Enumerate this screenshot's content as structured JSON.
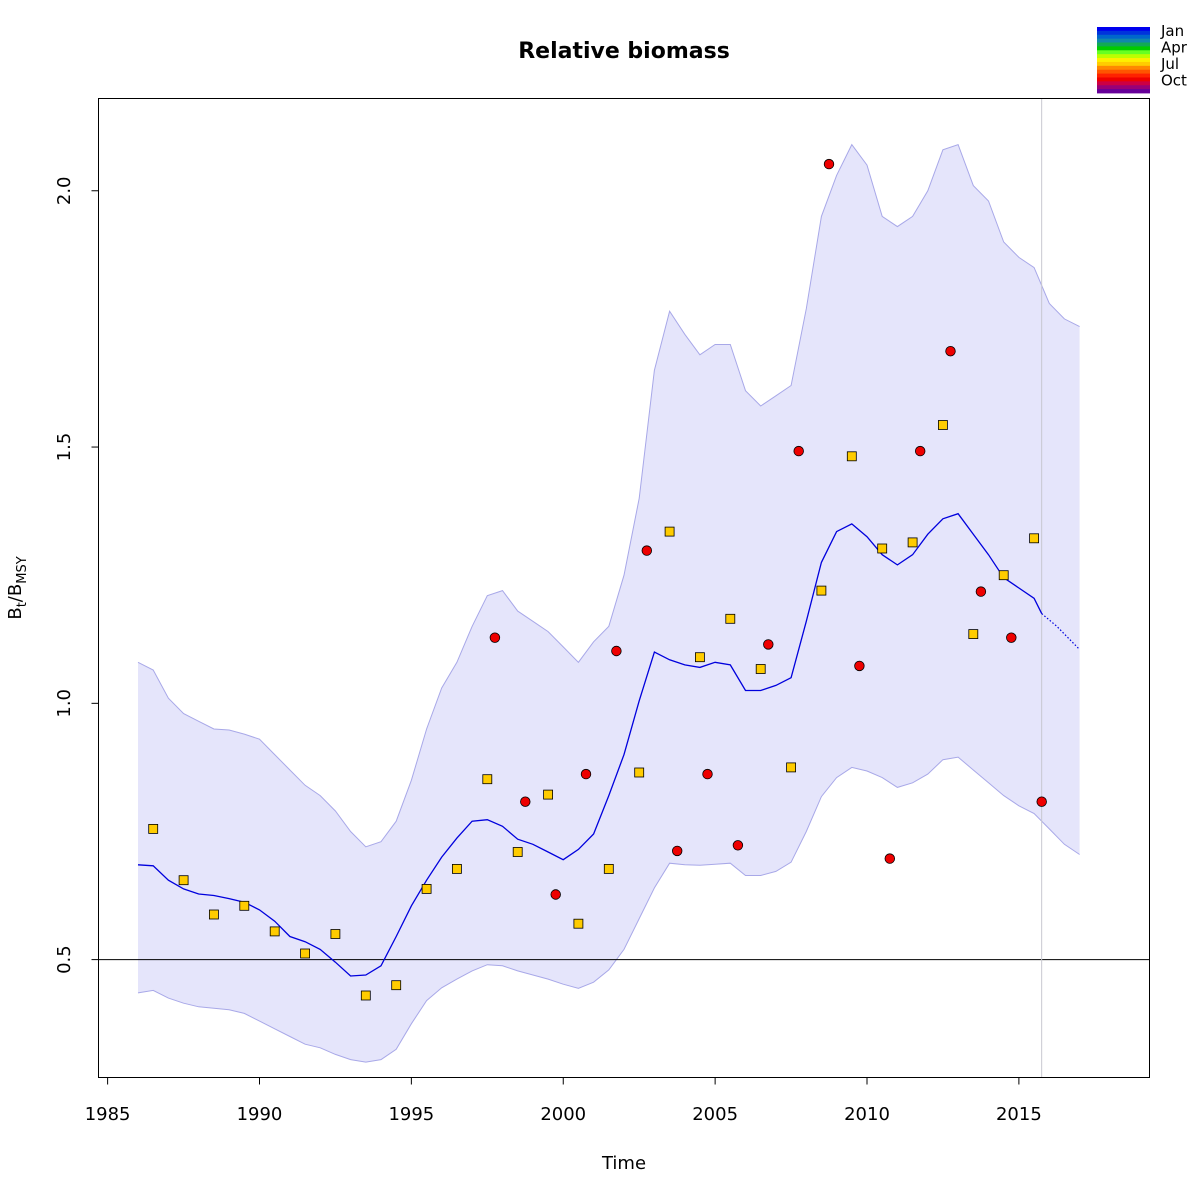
{
  "chart_data": {
    "type": "scatter",
    "title": "Relative biomass",
    "xlabel": "Time",
    "ylabel_main": "B",
    "ylabel_sub1": "t",
    "ylabel_sep": "/B",
    "ylabel_sub2": "MSY",
    "xlim": [
      1984.7,
      2019.3
    ],
    "ylim": [
      0.27,
      2.18
    ],
    "x_ticks": [
      1985,
      1990,
      1995,
      2000,
      2005,
      2010,
      2015
    ],
    "x_tick_labels": [
      "1985",
      "1990",
      "1995",
      "2000",
      "2005",
      "2010",
      "2015"
    ],
    "y_ticks": [
      0.5,
      1.0,
      1.5,
      2.0
    ],
    "y_tick_labels": [
      "0.5",
      "1.0",
      "1.5",
      "2.0"
    ],
    "reference_line_y": 0.5,
    "vertical_line_x": 2015.75,
    "colors": {
      "band_fill": "#e5e5fb",
      "band_edge": "#a8a8e8",
      "median_line": "#0000dd",
      "reference_line": "#000000",
      "vertical_line": "#c8c8d0",
      "series_jul": "#ffcc00",
      "series_oct": "#ee0000"
    },
    "legend": {
      "position": "top-right",
      "labels": [
        "Jan",
        "Apr",
        "Jul",
        "Oct"
      ],
      "gradient": [
        "#0000ee",
        "#0033dd",
        "#0066cc",
        "#1188aa",
        "#11aa55",
        "#00cc00",
        "#66ff22",
        "#bbff00",
        "#ffee00",
        "#ffcc00",
        "#ff8800",
        "#ff5500",
        "#ff2200",
        "#ee0000",
        "#cc0044",
        "#990077",
        "#660099"
      ]
    },
    "median": {
      "x": [
        1986.0,
        1986.5,
        1987.0,
        1987.5,
        1988.0,
        1988.5,
        1989.0,
        1989.5,
        1990.0,
        1990.5,
        1991.0,
        1991.5,
        1992.0,
        1992.5,
        1993.0,
        1993.5,
        1994.0,
        1994.5,
        1995.0,
        1995.5,
        1996.0,
        1996.5,
        1997.0,
        1997.5,
        1998.0,
        1998.5,
        1999.0,
        1999.5,
        2000.0,
        2000.5,
        2001.0,
        2001.5,
        2002.0,
        2002.5,
        2003.0,
        2003.5,
        2004.0,
        2004.5,
        2005.0,
        2005.5,
        2006.0,
        2006.5,
        2007.0,
        2007.5,
        2008.0,
        2008.5,
        2009.0,
        2009.5,
        2010.0,
        2010.5,
        2011.0,
        2011.5,
        2012.0,
        2012.5,
        2013.0,
        2013.5,
        2014.0,
        2014.5,
        2015.0,
        2015.5,
        2015.75
      ],
      "y": [
        0.685,
        0.683,
        0.655,
        0.638,
        0.628,
        0.625,
        0.619,
        0.612,
        0.597,
        0.575,
        0.545,
        0.535,
        0.52,
        0.495,
        0.468,
        0.47,
        0.488,
        0.545,
        0.605,
        0.655,
        0.7,
        0.737,
        0.77,
        0.773,
        0.76,
        0.735,
        0.725,
        0.71,
        0.695,
        0.715,
        0.745,
        0.82,
        0.9,
        1.005,
        1.1,
        1.085,
        1.075,
        1.07,
        1.08,
        1.075,
        1.025,
        1.025,
        1.035,
        1.05,
        1.16,
        1.275,
        1.335,
        1.35,
        1.325,
        1.29,
        1.27,
        1.29,
        1.33,
        1.36,
        1.37,
        1.33,
        1.29,
        1.245,
        1.225,
        1.205,
        1.175
      ],
      "projection_x": [
        2015.75,
        2016.25,
        2016.75,
        2017.0
      ],
      "projection_y": [
        1.175,
        1.15,
        1.12,
        1.105
      ]
    },
    "band": {
      "x": [
        1986.0,
        1986.5,
        1987.0,
        1987.5,
        1988.0,
        1988.5,
        1989.0,
        1989.5,
        1990.0,
        1990.5,
        1991.0,
        1991.5,
        1992.0,
        1992.5,
        1993.0,
        1993.5,
        1994.0,
        1994.5,
        1995.0,
        1995.5,
        1996.0,
        1996.5,
        1997.0,
        1997.5,
        1998.0,
        1998.5,
        1999.0,
        1999.5,
        2000.0,
        2000.5,
        2001.0,
        2001.5,
        2002.0,
        2002.5,
        2003.0,
        2003.5,
        2004.0,
        2004.5,
        2005.0,
        2005.5,
        2006.0,
        2006.5,
        2007.0,
        2007.5,
        2008.0,
        2008.5,
        2009.0,
        2009.5,
        2010.0,
        2010.5,
        2011.0,
        2011.5,
        2012.0,
        2012.5,
        2013.0,
        2013.5,
        2014.0,
        2014.5,
        2015.0,
        2015.5,
        2016.0,
        2016.5,
        2017.0
      ],
      "upper": [
        1.08,
        1.065,
        1.01,
        0.98,
        0.965,
        0.95,
        0.948,
        0.94,
        0.93,
        0.9,
        0.87,
        0.84,
        0.82,
        0.79,
        0.75,
        0.72,
        0.73,
        0.77,
        0.85,
        0.95,
        1.03,
        1.08,
        1.15,
        1.21,
        1.22,
        1.18,
        1.16,
        1.14,
        1.11,
        1.08,
        1.12,
        1.15,
        1.25,
        1.4,
        1.65,
        1.765,
        1.72,
        1.68,
        1.7,
        1.7,
        1.61,
        1.58,
        1.6,
        1.62,
        1.77,
        1.95,
        2.03,
        2.09,
        2.05,
        1.95,
        1.93,
        1.95,
        2.0,
        2.08,
        2.09,
        2.01,
        1.98,
        1.9,
        1.87,
        1.85,
        1.78,
        1.75,
        1.735
      ],
      "lower": [
        0.435,
        0.44,
        0.425,
        0.415,
        0.408,
        0.405,
        0.402,
        0.395,
        0.38,
        0.365,
        0.35,
        0.335,
        0.328,
        0.315,
        0.305,
        0.3,
        0.305,
        0.325,
        0.375,
        0.42,
        0.445,
        0.462,
        0.478,
        0.49,
        0.488,
        0.478,
        0.47,
        0.462,
        0.452,
        0.444,
        0.456,
        0.48,
        0.52,
        0.58,
        0.64,
        0.688,
        0.685,
        0.684,
        0.686,
        0.688,
        0.664,
        0.664,
        0.672,
        0.69,
        0.75,
        0.818,
        0.855,
        0.875,
        0.868,
        0.855,
        0.836,
        0.845,
        0.862,
        0.89,
        0.895,
        0.87,
        0.845,
        0.82,
        0.8,
        0.785,
        0.755,
        0.725,
        0.705
      ]
    },
    "series": [
      {
        "name": "Jul",
        "marker": "square",
        "x": [
          1986.5,
          1987.5,
          1988.5,
          1989.5,
          1990.5,
          1991.5,
          1992.5,
          1993.5,
          1994.5,
          1995.5,
          1996.5,
          1997.5,
          1998.5,
          1999.5,
          2000.5,
          2001.5,
          2002.5,
          2003.5,
          2004.5,
          2005.5,
          2006.5,
          2007.5,
          2008.5,
          2009.5,
          2010.5,
          2011.5,
          2012.5,
          2013.5,
          2014.5,
          2015.5
        ],
        "y": [
          0.755,
          0.655,
          0.588,
          0.605,
          0.555,
          0.512,
          0.55,
          0.43,
          0.45,
          0.638,
          0.677,
          0.852,
          0.71,
          0.822,
          0.57,
          0.677,
          0.865,
          1.335,
          1.09,
          1.165,
          1.067,
          0.875,
          1.22,
          1.482,
          1.302,
          1.314,
          1.543,
          1.135,
          1.25,
          1.322
        ]
      },
      {
        "name": "Oct",
        "marker": "circle",
        "x": [
          1997.75,
          1998.75,
          1999.75,
          2000.75,
          2001.75,
          2002.75,
          2003.75,
          2004.75,
          2005.75,
          2006.75,
          2007.75,
          2008.75,
          2009.75,
          2010.75,
          2011.75,
          2012.75,
          2013.75,
          2014.75,
          2015.75
        ],
        "y": [
          1.128,
          0.808,
          0.627,
          0.862,
          1.102,
          1.298,
          0.712,
          0.862,
          0.723,
          1.115,
          1.492,
          2.052,
          1.073,
          0.697,
          1.492,
          1.687,
          1.218,
          1.128,
          0.808
        ]
      }
    ]
  }
}
